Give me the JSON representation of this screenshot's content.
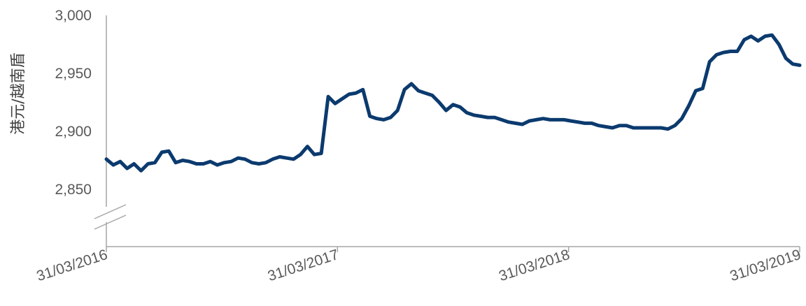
{
  "chart_data": {
    "type": "line",
    "title": "",
    "ylabel": "港元/越南盾",
    "xlabel": "",
    "ylim": [
      2850,
      3000
    ],
    "y_ticks": [
      "3,000",
      "2,950",
      "2,900",
      "2,850"
    ],
    "y_tick_values": [
      3000,
      2950,
      2900,
      2850
    ],
    "x_ticks": [
      "31/03/2016",
      "31/03/2017",
      "31/03/2018",
      "31/03/2019"
    ],
    "y_axis_break": true,
    "grid": false,
    "line_color": "#0b3a6e",
    "series": [
      {
        "x": [
          0,
          0.01,
          0.02,
          0.03,
          0.04,
          0.05,
          0.06,
          0.07,
          0.08,
          0.09,
          0.1,
          0.11,
          0.12,
          0.13,
          0.14,
          0.15,
          0.16,
          0.17,
          0.18,
          0.19,
          0.2,
          0.21,
          0.22,
          0.23,
          0.24,
          0.25,
          0.26,
          0.27,
          0.28,
          0.29,
          0.3,
          0.31,
          0.32,
          0.33,
          0.34,
          0.35,
          0.36,
          0.37,
          0.38,
          0.39,
          0.4,
          0.41,
          0.42,
          0.43,
          0.44,
          0.45,
          0.46,
          0.47,
          0.48,
          0.49,
          0.5,
          0.51,
          0.52,
          0.53,
          0.54,
          0.55,
          0.56,
          0.57,
          0.58,
          0.59,
          0.6,
          0.61,
          0.62,
          0.63,
          0.64,
          0.65,
          0.66,
          0.67,
          0.68,
          0.69,
          0.7,
          0.71,
          0.72,
          0.73,
          0.74,
          0.75,
          0.76,
          0.77,
          0.78,
          0.79,
          0.8,
          0.81,
          0.82,
          0.83,
          0.84,
          0.85,
          0.86,
          0.87,
          0.88,
          0.89,
          0.9,
          0.91,
          0.92,
          0.93,
          0.94,
          0.95,
          0.96,
          0.97,
          0.98,
          0.99,
          1.0
        ],
        "values": [
          2876,
          2871,
          2874,
          2868,
          2872,
          2866,
          2872,
          2873,
          2882,
          2883,
          2873,
          2875,
          2874,
          2872,
          2872,
          2874,
          2871,
          2873,
          2874,
          2877,
          2876,
          2873,
          2872,
          2873,
          2876,
          2878,
          2877,
          2876,
          2880,
          2887,
          2880,
          2881,
          2930,
          2924,
          2928,
          2932,
          2933,
          2936,
          2913,
          2911,
          2910,
          2912,
          2918,
          2936,
          2941,
          2935,
          2933,
          2931,
          2925,
          2918,
          2923,
          2921,
          2916,
          2914,
          2913,
          2912,
          2912,
          2910,
          2908,
          2907,
          2906,
          2909,
          2910,
          2911,
          2910,
          2910,
          2910,
          2909,
          2908,
          2907,
          2907,
          2905,
          2904,
          2903,
          2905,
          2905,
          2903,
          2903,
          2903,
          2903,
          2903,
          2902,
          2905,
          2911,
          2922,
          2935,
          2937,
          2960,
          2966,
          2968,
          2969,
          2969,
          2979,
          2982,
          2978,
          2982,
          2983,
          2975,
          2963,
          2958,
          2957
        ]
      }
    ]
  }
}
